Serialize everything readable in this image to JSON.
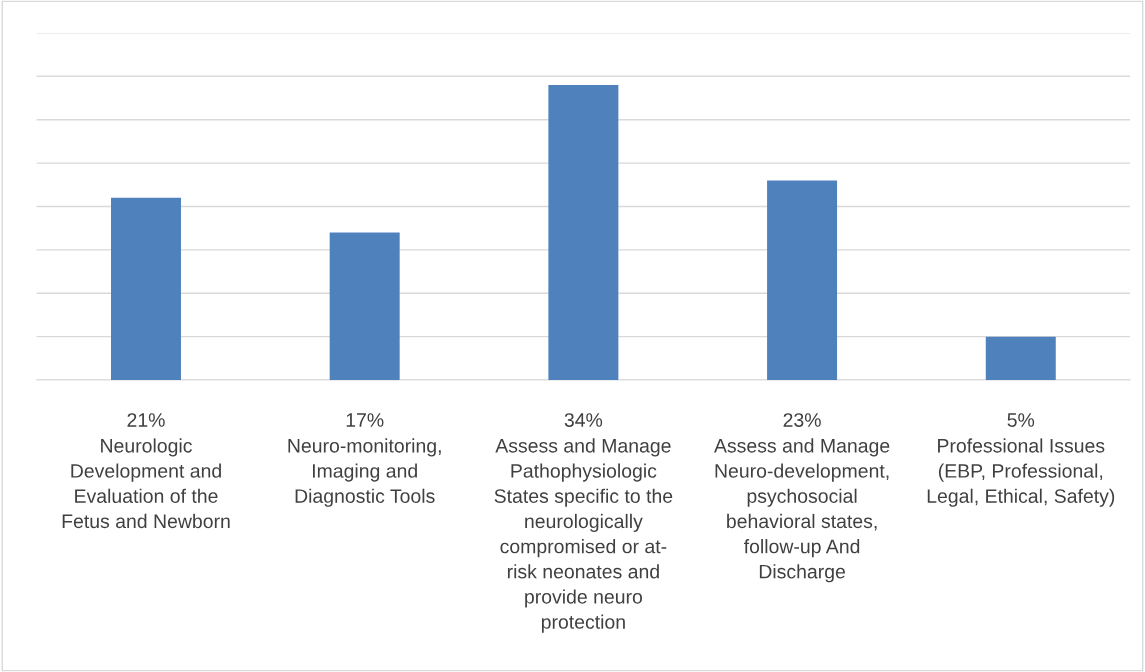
{
  "chart_data": {
    "type": "bar",
    "categories": [
      "Neurologic\nDevelopment and\nEvaluation of the\nFetus and Newborn",
      "Neuro-monitoring,\nImaging and\nDiagnostic Tools",
      "Assess and Manage\nPathophysiologic\nStates specific to the\nneurologically\ncompromised or at-\nrisk neonates and\nprovide neuro\nprotection",
      "Assess and Manage\nNeuro-development,\npsychosocial\nbehavioral states,\nfollow-up And\nDischarge",
      "Professional Issues\n(EBP, Professional,\nLegal, Ethical, Safety)"
    ],
    "values": [
      21,
      17,
      34,
      23,
      5
    ],
    "value_labels": [
      "21%",
      "17%",
      "34%",
      "23%",
      "5%"
    ],
    "color": "#4f81bd",
    "ylim": [
      0,
      40
    ],
    "yticks": [
      {
        "value": 0,
        "label": null
      },
      {
        "value": 5,
        "label": null
      },
      {
        "value": 10,
        "label": null
      },
      {
        "value": 15,
        "label": null
      },
      {
        "value": 20,
        "label": null
      },
      {
        "value": 25,
        "label": null
      },
      {
        "value": 30,
        "label": null
      },
      {
        "value": 35,
        "label": null
      },
      {
        "value": 40,
        "label": null
      }
    ],
    "grid": "y",
    "tick_labels": "x"
  }
}
